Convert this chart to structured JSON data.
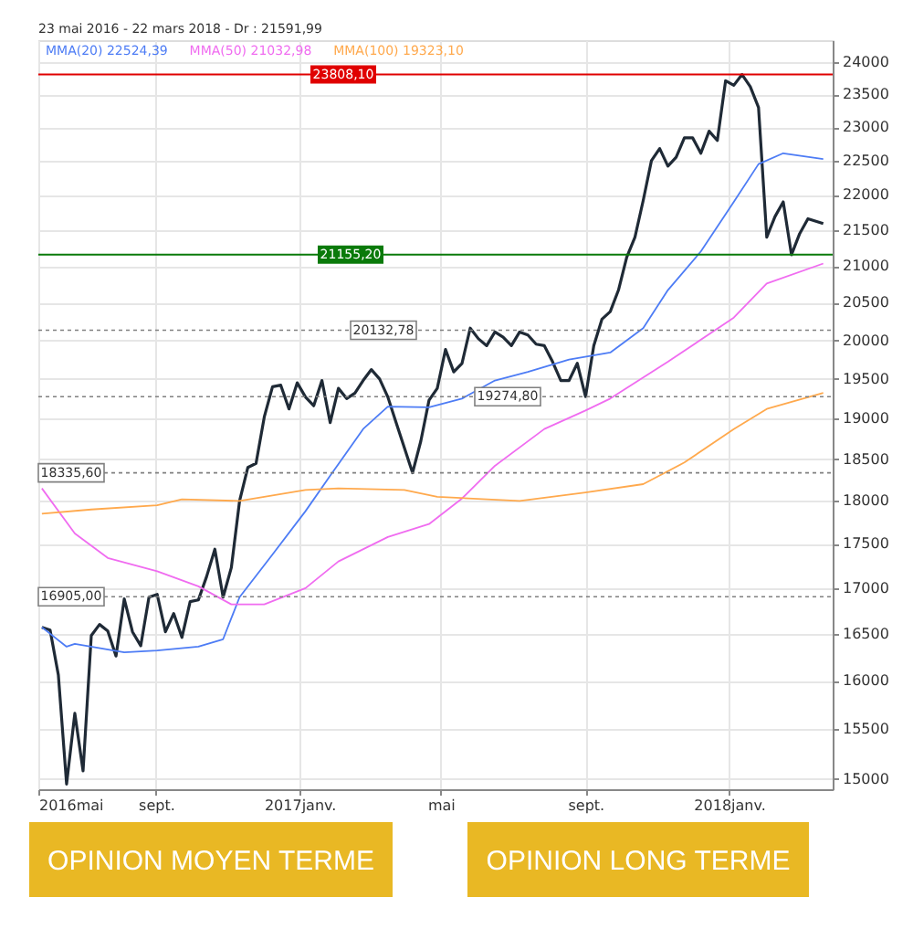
{
  "chart_data": {
    "type": "line",
    "title": "23 mai 2016 - 22 mars 2018 - Dr : 21591,99",
    "x": [
      "2016-05-27",
      "2016-06-03",
      "2016-06-10",
      "2016-06-17",
      "2016-06-24",
      "2016-07-01",
      "2016-07-08",
      "2016-07-15",
      "2016-07-22",
      "2016-07-29",
      "2016-08-05",
      "2016-08-12",
      "2016-08-19",
      "2016-08-26",
      "2016-09-02",
      "2016-09-09",
      "2016-09-16",
      "2016-09-23",
      "2016-09-30",
      "2016-10-07",
      "2016-10-14",
      "2016-10-21",
      "2016-10-28",
      "2016-11-04",
      "2016-11-11",
      "2016-11-18",
      "2016-11-25",
      "2016-12-02",
      "2016-12-09",
      "2016-12-16",
      "2016-12-23",
      "2016-12-30",
      "2017-01-06",
      "2017-01-13",
      "2017-01-20",
      "2017-01-27",
      "2017-02-03",
      "2017-02-10",
      "2017-02-17",
      "2017-02-24",
      "2017-03-03",
      "2017-03-10",
      "2017-03-17",
      "2017-03-24",
      "2017-03-31",
      "2017-04-07",
      "2017-04-14",
      "2017-04-21",
      "2017-04-28",
      "2017-05-05",
      "2017-05-12",
      "2017-05-19",
      "2017-05-26",
      "2017-06-02",
      "2017-06-09",
      "2017-06-16",
      "2017-06-23",
      "2017-06-30",
      "2017-07-07",
      "2017-07-14",
      "2017-07-21",
      "2017-07-28",
      "2017-08-04",
      "2017-08-11",
      "2017-08-18",
      "2017-08-25",
      "2017-09-01",
      "2017-09-08",
      "2017-09-15",
      "2017-09-22",
      "2017-09-29",
      "2017-10-06",
      "2017-10-13",
      "2017-10-20",
      "2017-10-27",
      "2017-11-03",
      "2017-11-10",
      "2017-11-17",
      "2017-11-24",
      "2017-12-01",
      "2017-12-08",
      "2017-12-15",
      "2017-12-22",
      "2017-12-29",
      "2018-01-05",
      "2018-01-12",
      "2018-01-19",
      "2018-01-26",
      "2018-02-02",
      "2018-02-09",
      "2018-02-16",
      "2018-02-23",
      "2018-03-02",
      "2018-03-09",
      "2018-03-22"
    ],
    "series": [
      {
        "color": "#1f2a36",
        "values": [
          16570,
          16540,
          16060,
          14950,
          15660,
          15080,
          16480,
          16600,
          16530,
          16260,
          16880,
          16520,
          16370,
          16900,
          16930,
          16520,
          16720,
          16460,
          16850,
          16870,
          17130,
          17440,
          16900,
          17230,
          18000,
          18400,
          18450,
          19020,
          19400,
          19420,
          19120,
          19450,
          19270,
          19160,
          19480,
          18950,
          19380,
          19250,
          19320,
          19480,
          19620,
          19500,
          19270,
          18950,
          18640,
          18336,
          18720,
          19230,
          19380,
          19880,
          19590,
          19700,
          20160,
          20020,
          19930,
          20110,
          20040,
          19930,
          20110,
          20070,
          19950,
          19930,
          19720,
          19480,
          19480,
          19700,
          19275,
          19930,
          20280,
          20380,
          20670,
          21120,
          21400,
          21920,
          22500,
          22680,
          22420,
          22550,
          22840,
          22840,
          22610,
          22940,
          22800,
          23710,
          23640,
          23808,
          23620,
          23300,
          21400,
          21690,
          21900,
          21155,
          21450,
          21660,
          21592
        ]
      },
      {
        "name": "MMA(20) 22524,39",
        "color": "#4d7cf5",
        "x": [
          "2016-05-27",
          "2016-06-17",
          "2016-06-24",
          "2016-08-05",
          "2016-09-02",
          "2016-10-07",
          "2016-10-28",
          "2016-11-11",
          "2016-12-09",
          "2017-01-06",
          "2017-01-27",
          "2017-02-24",
          "2017-03-17",
          "2017-04-21",
          "2017-05-19",
          "2017-06-16",
          "2017-07-14",
          "2017-08-18",
          "2017-09-22",
          "2017-10-20",
          "2017-11-10",
          "2017-12-08",
          "2018-01-05",
          "2018-01-26",
          "2018-02-16",
          "2018-03-22"
        ],
        "values": [
          16570,
          16360,
          16390,
          16300,
          16320,
          16360,
          16440,
          16900,
          17380,
          17880,
          18300,
          18870,
          19150,
          19140,
          19250,
          19480,
          19590,
          19750,
          19840,
          20160,
          20670,
          21200,
          21900,
          22450,
          22610,
          22524
        ]
      },
      {
        "name": "MMA(50) 21032,98",
        "color": "#f06cf0",
        "x": [
          "2016-05-27",
          "2016-06-24",
          "2016-07-22",
          "2016-09-02",
          "2016-10-07",
          "2016-11-04",
          "2016-12-02",
          "2017-01-06",
          "2017-02-03",
          "2017-03-17",
          "2017-04-21",
          "2017-05-19",
          "2017-06-16",
          "2017-07-28",
          "2017-09-01",
          "2017-09-22",
          "2017-11-10",
          "2018-01-05",
          "2018-02-02",
          "2018-03-22"
        ],
        "values": [
          18150,
          17620,
          17340,
          17190,
          17020,
          16820,
          16820,
          17000,
          17300,
          17580,
          17730,
          18030,
          18420,
          18870,
          19100,
          19250,
          19720,
          20300,
          20760,
          21033
        ]
      },
      {
        "name": "MMA(100) 19323,10",
        "color": "#ffa94d",
        "x": [
          "2016-05-27",
          "2016-07-08",
          "2016-09-02",
          "2016-09-23",
          "2016-11-11",
          "2017-01-06",
          "2017-02-03",
          "2017-03-31",
          "2017-04-28",
          "2017-07-07",
          "2017-09-01",
          "2017-10-20",
          "2017-11-24",
          "2018-01-05",
          "2018-02-02",
          "2018-03-22"
        ],
        "values": [
          17850,
          17900,
          17950,
          18020,
          18000,
          18130,
          18150,
          18130,
          18050,
          18000,
          18100,
          18200,
          18460,
          18870,
          19120,
          19323
        ]
      }
    ],
    "xlim": [
      "2016-05-24",
      "2018-03-30"
    ],
    "xticks": [
      {
        "value": "2016-05-24",
        "label": "2016mai"
      },
      {
        "value": "2016-09-01",
        "label": "sept."
      },
      {
        "value": "2017-01-01",
        "label": "2017janv."
      },
      {
        "value": "2017-05-01",
        "label": "mai"
      },
      {
        "value": "2017-09-01",
        "label": "sept."
      },
      {
        "value": "2018-01-01",
        "label": "2018janv."
      }
    ],
    "ylim": [
      14900,
      24350
    ],
    "yticks": [
      15000,
      15500,
      16000,
      16500,
      17000,
      17500,
      18000,
      18500,
      19000,
      19500,
      20000,
      20500,
      21000,
      21500,
      22000,
      22500,
      23000,
      23500,
      24000
    ],
    "log": true,
    "grid": true,
    "legend": "top left",
    "line_style": "solid",
    "marker": "none",
    "ref_lines": [
      {
        "axis": "y",
        "value": 23808.1,
        "label": "23808,10",
        "color": "#e00000",
        "line_style": "solid"
      },
      {
        "axis": "y",
        "value": 21155.2,
        "label": "21155,20",
        "color": "#0a7a0a",
        "line_style": "solid"
      },
      {
        "axis": "y",
        "value": 20132.78,
        "label": "20132,78",
        "color": "#808080",
        "line_style": "dotted"
      },
      {
        "axis": "y",
        "value": 19274.8,
        "label": "19274,80",
        "color": "#808080",
        "line_style": "dotted"
      },
      {
        "axis": "y",
        "value": 18335.6,
        "label": "18335,60",
        "color": "#808080",
        "line_style": "dotted"
      },
      {
        "axis": "y",
        "value": 16905.0,
        "label": "16905,00",
        "color": "#808080",
        "line_style": "dotted"
      }
    ],
    "annotations": [
      "OPINION MOYEN TERME",
      "OPINION LONG TERME"
    ]
  }
}
